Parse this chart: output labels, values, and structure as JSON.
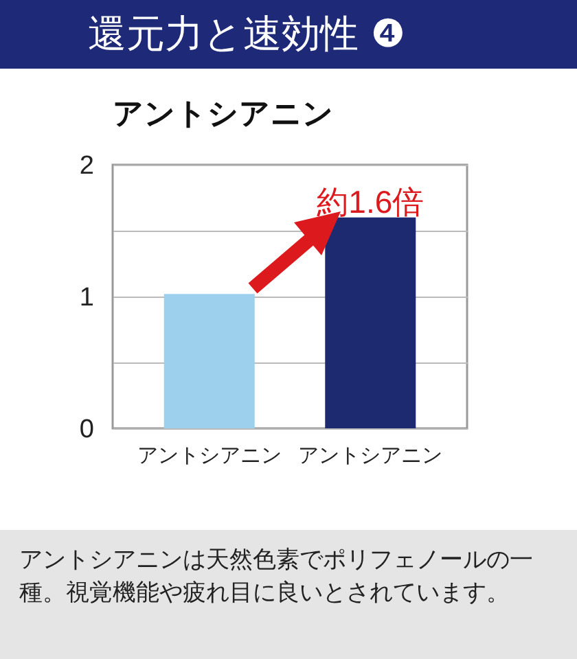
{
  "chart_data": {
    "type": "bar",
    "title": "還元力と速効性 ❹",
    "subtitle": "アントシアニン",
    "categories": [
      "アントシアニン",
      "アントシアニン"
    ],
    "values": [
      1.02,
      1.6
    ],
    "colors": [
      "#9dd0ec",
      "#1e2a70"
    ],
    "ylim": [
      0,
      2
    ],
    "yticks": [
      0,
      {
        "value": 0.5,
        "label": null
      },
      1,
      {
        "value": 1.5,
        "label": null
      },
      2
    ],
    "grid": "y",
    "annotations": [
      "約1.6倍",
      "アントシアニンは天然色素でポリフェノールの一種。視覚機能や疲れ目に良いとされています。"
    ]
  }
}
